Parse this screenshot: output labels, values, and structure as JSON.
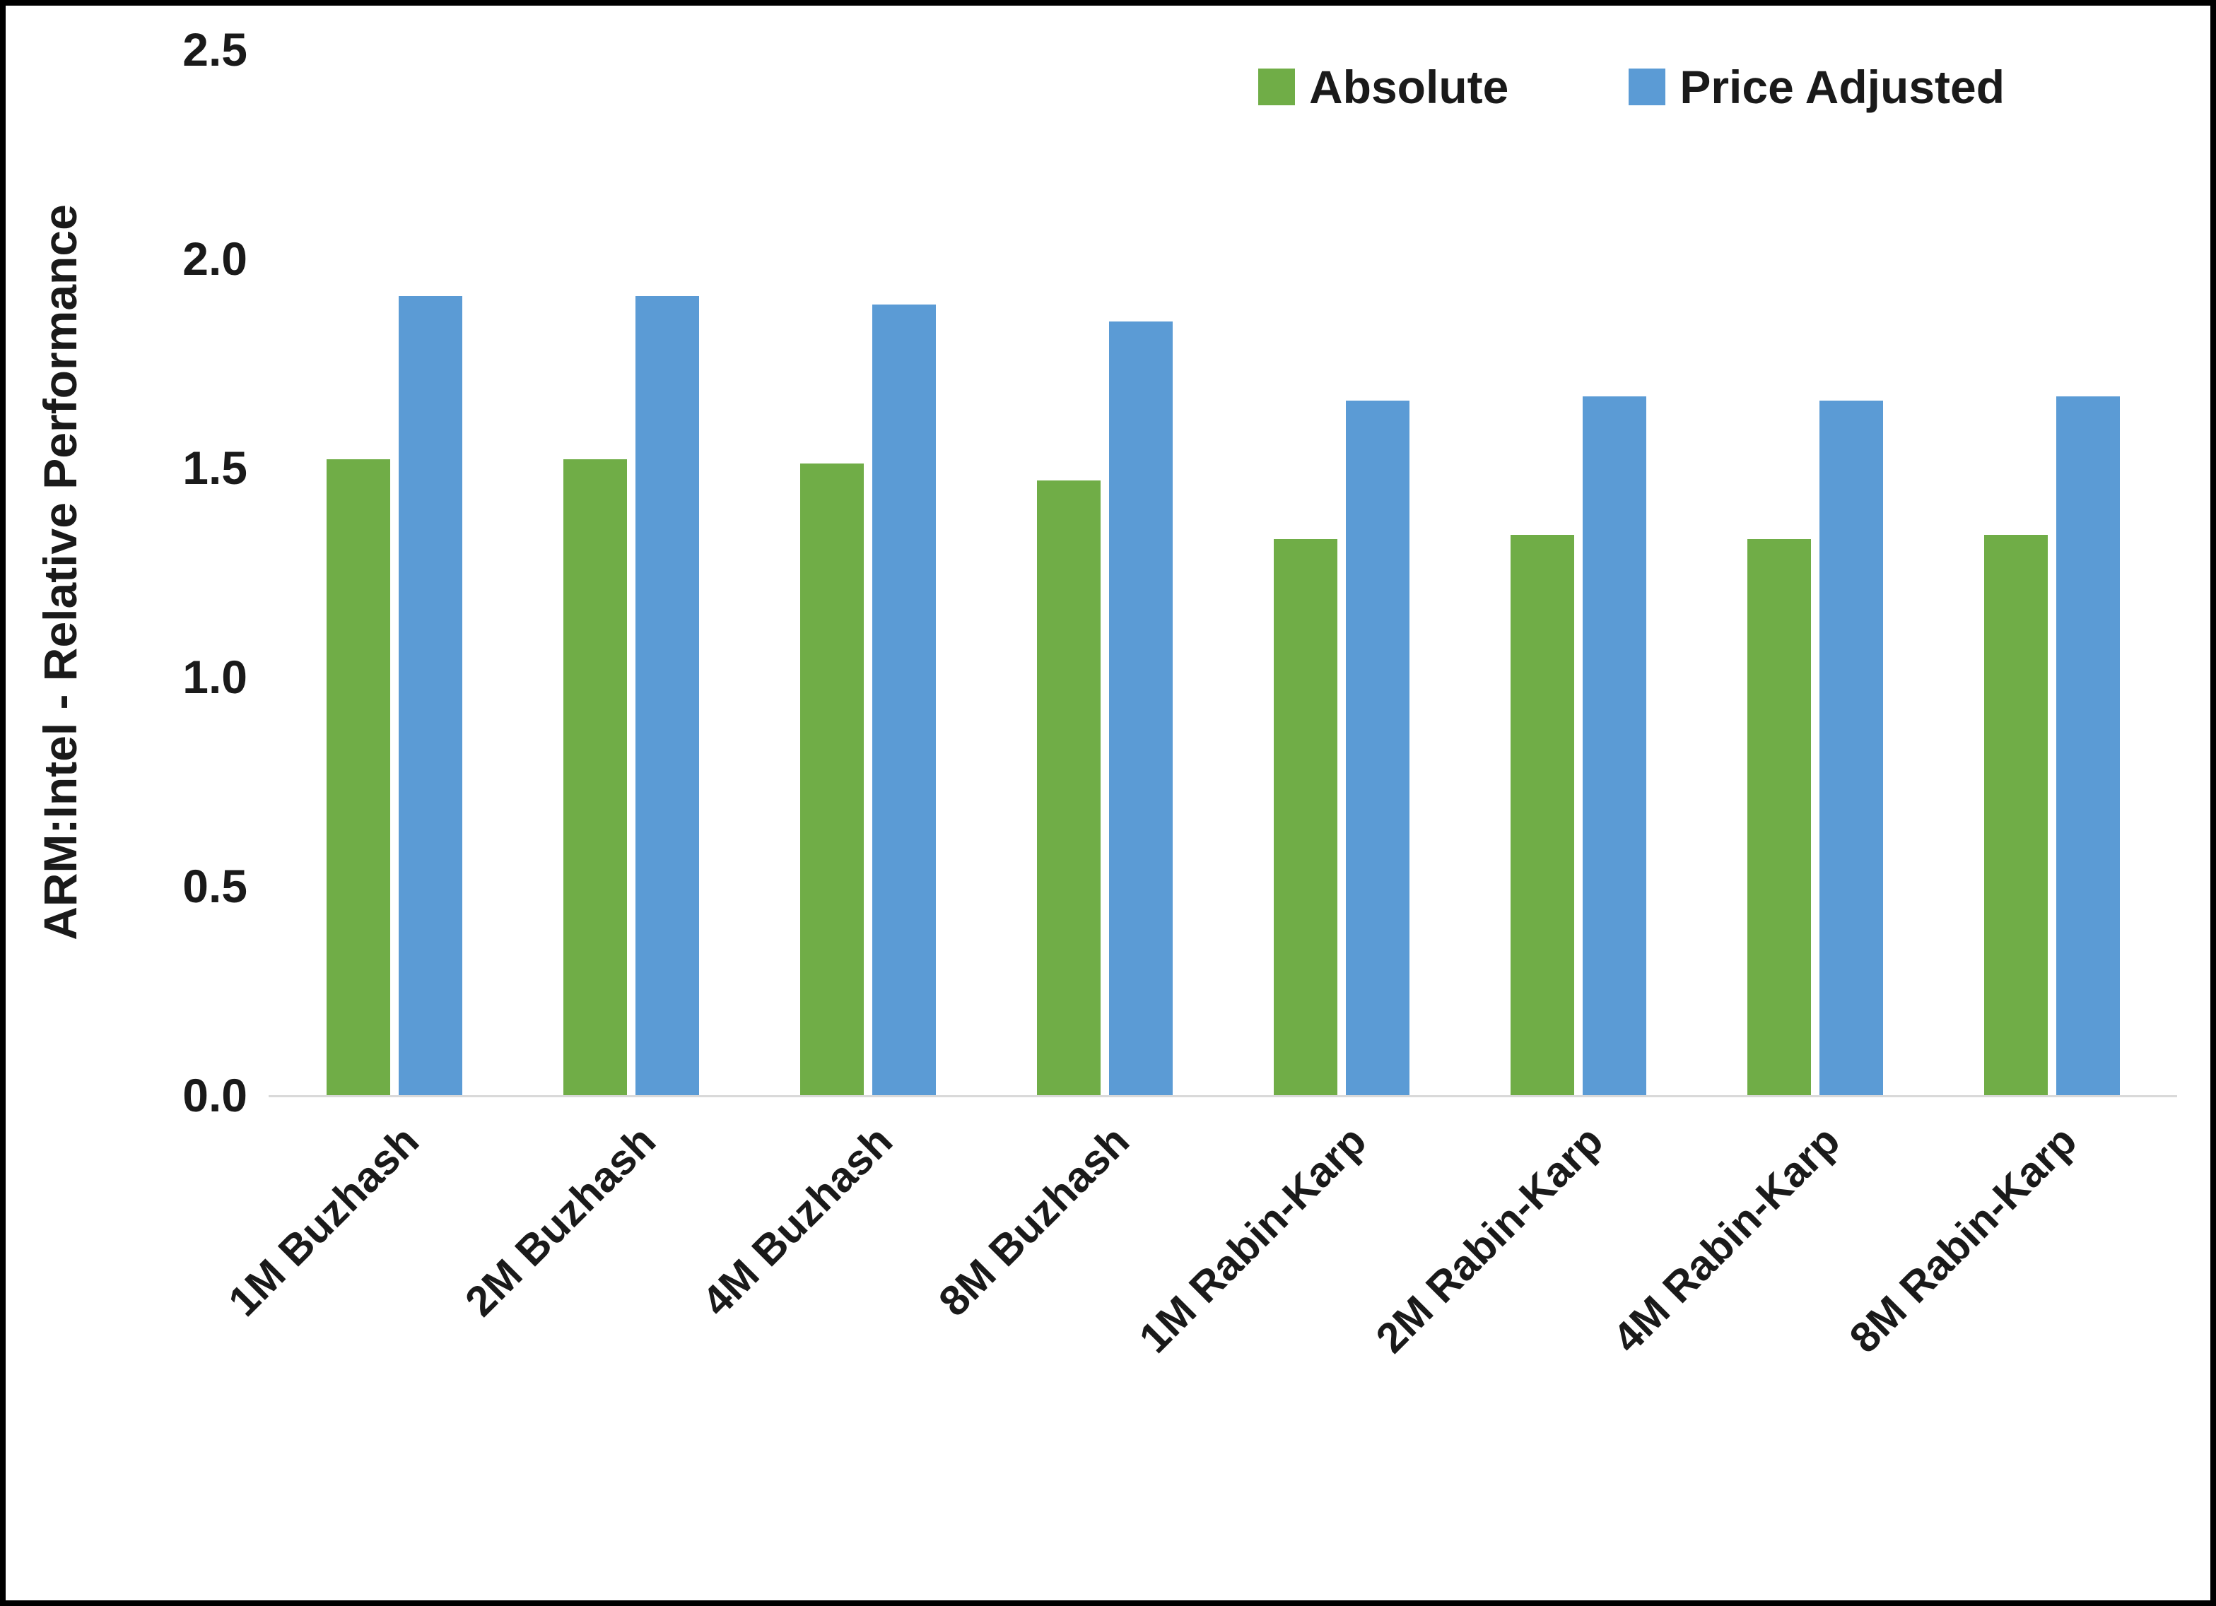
{
  "chart_data": {
    "type": "bar",
    "title": "",
    "xlabel": "",
    "ylabel": "ARM:Intel - Relative Performance",
    "ylim": [
      0,
      2.5
    ],
    "ytick_labels": [
      "0.0",
      "0.5",
      "1.0",
      "1.5",
      "2.0",
      "2.5"
    ],
    "categories": [
      "1M Buzhash",
      "2M Buzhash",
      "4M Buzhash",
      "8M Buzhash",
      "1M Rabin-Karp",
      "2M Rabin-Karp",
      "4M Rabin-Karp",
      "8M Rabin-Karp"
    ],
    "series": [
      {
        "name": "Absolute",
        "color": "#70AD47",
        "values": [
          1.52,
          1.52,
          1.51,
          1.47,
          1.33,
          1.34,
          1.33,
          1.34
        ]
      },
      {
        "name": "Price Adjusted",
        "color": "#5B9BD5",
        "values": [
          1.91,
          1.91,
          1.89,
          1.85,
          1.66,
          1.67,
          1.66,
          1.67
        ]
      }
    ],
    "legend": {
      "position": "top-right",
      "entries": [
        "Absolute",
        "Price Adjusted"
      ]
    },
    "grid": false,
    "axis_line_color": "#d9d9d9",
    "text_color": "#1a1a1a",
    "background": "#ffffff",
    "border_color": "#000000"
  }
}
